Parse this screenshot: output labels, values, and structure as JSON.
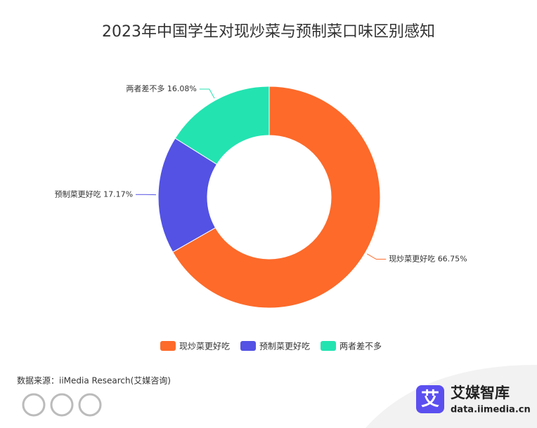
{
  "chart_data": {
    "type": "donut",
    "title": "2023年中国学生对现炒菜与预制菜口味区别感知",
    "categories": [
      "现炒菜更好吃",
      "预制菜更好吃",
      "两者差不多"
    ],
    "values": [
      66.75,
      17.17,
      16.08
    ],
    "value_labels": [
      "66.75%",
      "17.17%",
      "16.08%"
    ],
    "colors": [
      "#fd6a2a",
      "#5352e4",
      "#23e3b1"
    ],
    "legend": "bottom",
    "source": "数据来源：iiMedia Research(艾媒咨询)"
  },
  "branding": {
    "icon": "艾",
    "name": "艾媒智库",
    "site": "data.iimedia.cn"
  }
}
